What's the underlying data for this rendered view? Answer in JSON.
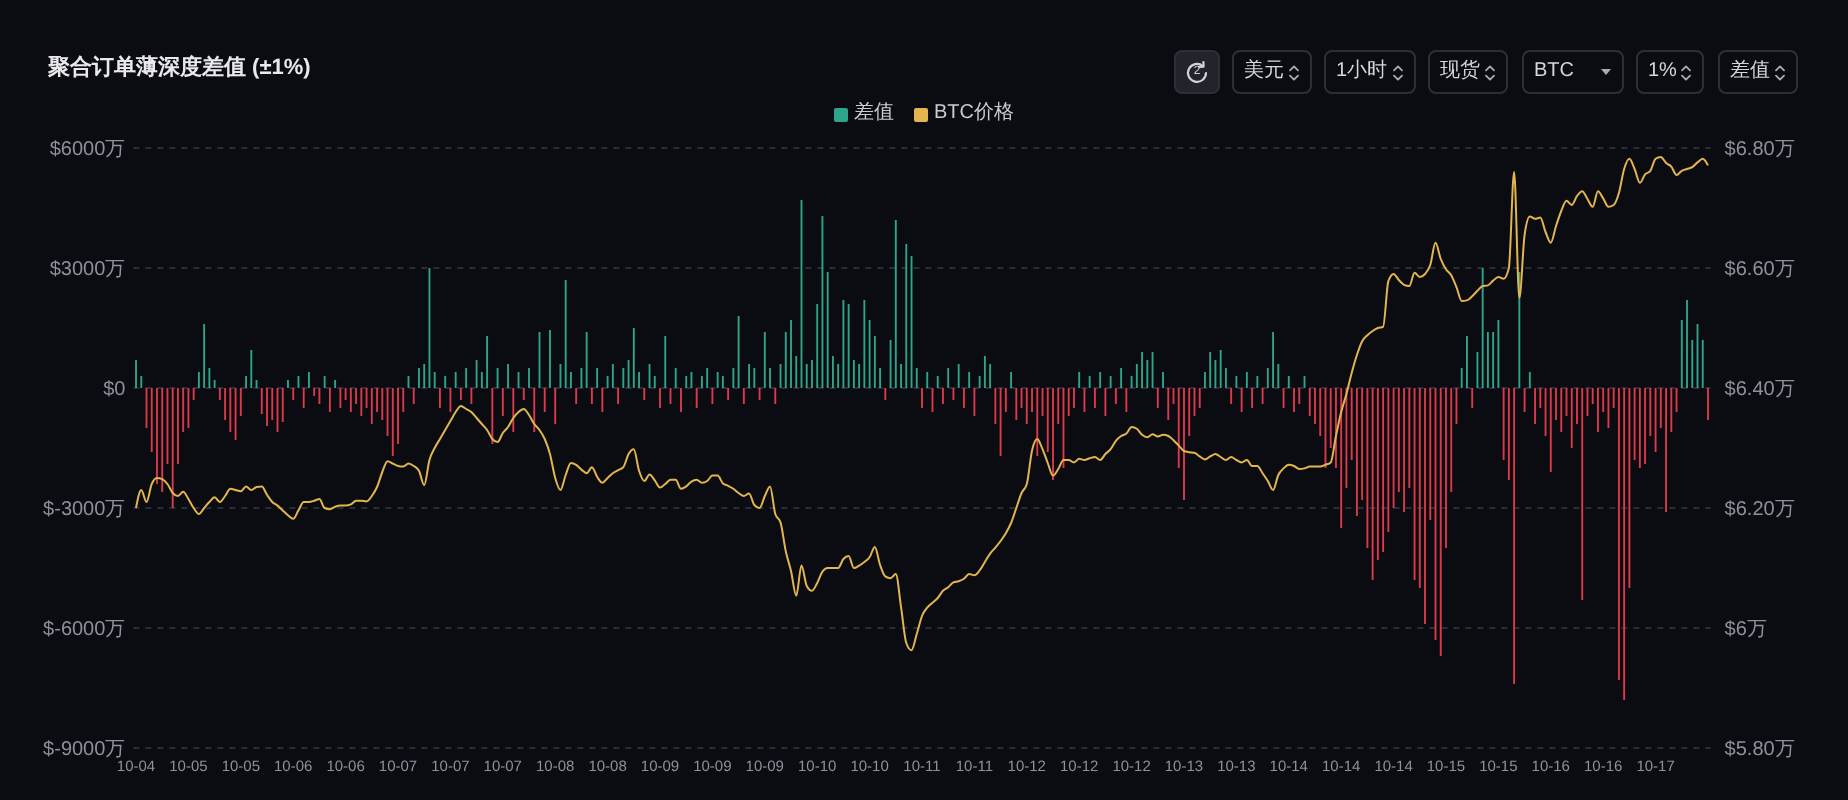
{
  "chart_data": {
    "type": "bar",
    "title": "聚合订单薄深度差值 (±1%)",
    "annotations": [
      "2",
      "美元",
      "1小时",
      "现货",
      "BTC",
      "1%",
      "差值"
    ],
    "categories": [
      "10-04",
      null,
      null,
      null,
      null,
      null,
      null,
      null,
      null,
      null,
      "10-05",
      null,
      null,
      null,
      null,
      null,
      null,
      null,
      null,
      null,
      "10-05",
      null,
      null,
      null,
      null,
      null,
      null,
      null,
      null,
      null,
      "10-06",
      null,
      null,
      null,
      null,
      null,
      null,
      null,
      null,
      null,
      "10-06",
      null,
      null,
      null,
      null,
      null,
      null,
      null,
      null,
      null,
      "10-07",
      null,
      null,
      null,
      null,
      null,
      null,
      null,
      null,
      null,
      "10-07",
      null,
      null,
      null,
      null,
      null,
      null,
      null,
      null,
      null,
      "10-07",
      null,
      null,
      null,
      null,
      null,
      null,
      null,
      null,
      null,
      "10-08",
      null,
      null,
      null,
      null,
      null,
      null,
      null,
      null,
      null,
      "10-08",
      null,
      null,
      null,
      null,
      null,
      null,
      null,
      null,
      null,
      "10-09",
      null,
      null,
      null,
      null,
      null,
      null,
      null,
      null,
      null,
      "10-09",
      null,
      null,
      null,
      null,
      null,
      null,
      null,
      null,
      null,
      "10-09",
      null,
      null,
      null,
      null,
      null,
      null,
      null,
      null,
      null,
      "10-10",
      null,
      null,
      null,
      null,
      null,
      null,
      null,
      null,
      null,
      "10-10",
      null,
      null,
      null,
      null,
      null,
      null,
      null,
      null,
      null,
      "10-11",
      null,
      null,
      null,
      null,
      null,
      null,
      null,
      null,
      null,
      "10-11",
      null,
      null,
      null,
      null,
      null,
      null,
      null,
      null,
      null,
      "10-12",
      null,
      null,
      null,
      null,
      null,
      null,
      null,
      null,
      null,
      "10-12",
      null,
      null,
      null,
      null,
      null,
      null,
      null,
      null,
      null,
      "10-12",
      null,
      null,
      null,
      null,
      null,
      null,
      null,
      null,
      null,
      "10-13",
      null,
      null,
      null,
      null,
      null,
      null,
      null,
      null,
      null,
      "10-13",
      null,
      null,
      null,
      null,
      null,
      null,
      null,
      null,
      null,
      "10-14",
      null,
      null,
      null,
      null,
      null,
      null,
      null,
      null,
      null,
      "10-14",
      null,
      null,
      null,
      null,
      null,
      null,
      null,
      null,
      null,
      "10-14",
      null,
      null,
      null,
      null,
      null,
      null,
      null,
      null,
      null,
      "10-15",
      null,
      null,
      null,
      null,
      null,
      null,
      null,
      null,
      null,
      "10-15",
      null,
      null,
      null,
      null,
      null,
      null,
      null,
      null,
      null,
      "10-16",
      null,
      null,
      null,
      null,
      null,
      null,
      null,
      null,
      null,
      "10-16",
      null,
      null,
      null,
      null,
      null,
      null,
      null,
      null,
      null,
      "10-17",
      null,
      null,
      null,
      null,
      null,
      null,
      null,
      null,
      null,
      null
    ],
    "series": [
      {
        "name": "差值",
        "color": "#2ea58a",
        "values": [
          700,
          300,
          -1000,
          -1600,
          -2400,
          -2600,
          -1900,
          -3000,
          -1900,
          -1100,
          -1000,
          -300,
          400,
          1600,
          500,
          200,
          -300,
          -800,
          -1100,
          -1300,
          -700,
          300,
          950,
          200,
          -650,
          -950,
          -800,
          -1100,
          -850,
          200,
          -300,
          300,
          -500,
          400,
          -200,
          -400,
          300,
          -600,
          200,
          -500,
          -300,
          -600,
          -400,
          -700,
          -500,
          -900,
          -600,
          -800,
          -1200,
          -1700,
          -1400,
          -600,
          300,
          -400,
          500,
          600,
          3000,
          400,
          -500,
          300,
          -600,
          400,
          -300,
          500,
          -400,
          700,
          400,
          1300,
          -1400,
          500,
          -700,
          600,
          -1100,
          400,
          -300,
          500,
          -1100,
          1400,
          -600,
          1450,
          -900,
          600,
          2700,
          400,
          -400,
          500,
          1400,
          -400,
          500,
          -600,
          300,
          600,
          -400,
          500,
          700,
          1500,
          400,
          -300,
          600,
          300,
          -500,
          1300,
          -400,
          500,
          -600,
          300,
          400,
          -500,
          300,
          500,
          -400,
          400,
          300,
          -300,
          500,
          1800,
          -400,
          600,
          500,
          -300,
          1400,
          500,
          -400,
          600,
          1400,
          1700,
          800,
          4700,
          600,
          700,
          2100,
          4300,
          2900,
          800,
          600,
          2200,
          2100,
          700,
          600,
          2200,
          1700,
          1300,
          500,
          -300,
          1200,
          4200,
          600,
          3600,
          3300,
          500,
          -500,
          400,
          -600,
          300,
          -400,
          500,
          -300,
          600,
          -500,
          400,
          -700,
          300,
          800,
          600,
          -900,
          -1700,
          -600,
          400,
          -800,
          -500,
          -900,
          -600,
          -1700,
          -700,
          -1600,
          -2300,
          -900,
          -2000,
          -700,
          -500,
          400,
          -600,
          300,
          -500,
          400,
          -700,
          300,
          -400,
          500,
          -600,
          300,
          600,
          900,
          700,
          900,
          -500,
          400,
          -800,
          -400,
          -2000,
          -2800,
          -1200,
          -700,
          -500,
          400,
          900,
          700,
          950,
          500,
          -400,
          300,
          -600,
          400,
          -500,
          300,
          -400,
          500,
          1400,
          600,
          -500,
          300,
          -600,
          -400,
          300,
          -700,
          -900,
          -1200,
          -2000,
          -1500,
          -2000,
          -3500,
          -2500,
          -1800,
          -3200,
          -2800,
          -4000,
          -4800,
          -4300,
          -4100,
          -3600,
          -3000,
          -2600,
          -3100,
          -2500,
          -4800,
          -5000,
          -5900,
          -3300,
          -6300,
          -6700,
          -4000,
          -2600,
          -900,
          500,
          1300,
          -500,
          900,
          3000,
          1400,
          1400,
          1700,
          -1800,
          -2300,
          -7400,
          2900,
          -600,
          400,
          -900,
          -500,
          -1200,
          -2100,
          -800,
          -1100,
          -700,
          -1500,
          -900,
          -5300,
          -700,
          -400,
          -1100,
          -600,
          -1000,
          -500,
          -7300,
          -7800,
          -5000,
          -1800,
          -2000,
          -1900,
          -1200,
          -1600,
          -1000,
          -3100,
          -1100,
          -600,
          1700,
          2200,
          1200,
          1600,
          1200,
          -800
        ],
        "colors": [
          "#2ea58a",
          "#2ea58a",
          "#dc3a4a",
          "#dc3a4a",
          "#dc3a4a",
          "#dc3a4a",
          "#dc3a4a",
          "#dc3a4a",
          "#dc3a4a",
          "#dc3a4a",
          "#dc3a4a",
          "#dc3a4a",
          "#2ea58a",
          "#2ea58a",
          "#2ea58a",
          "#2ea58a",
          "#dc3a4a",
          "#dc3a4a",
          "#dc3a4a",
          "#dc3a4a",
          "#dc3a4a",
          "#2ea58a",
          "#2ea58a",
          "#2ea58a",
          "#dc3a4a",
          "#dc3a4a",
          "#dc3a4a",
          "#dc3a4a",
          "#dc3a4a",
          "#2ea58a",
          "#dc3a4a",
          "#2ea58a",
          "#dc3a4a",
          "#2ea58a",
          "#dc3a4a",
          "#dc3a4a",
          "#2ea58a",
          "#dc3a4a",
          "#2ea58a",
          "#dc3a4a",
          "#dc3a4a",
          "#dc3a4a",
          "#dc3a4a",
          "#dc3a4a",
          "#dc3a4a",
          "#dc3a4a",
          "#dc3a4a",
          "#dc3a4a",
          "#dc3a4a",
          "#dc3a4a",
          "#dc3a4a",
          "#dc3a4a",
          "#2ea58a",
          "#dc3a4a",
          "#2ea58a",
          "#2ea58a",
          "#2ea58a",
          "#2ea58a",
          "#dc3a4a",
          "#2ea58a",
          "#dc3a4a",
          "#2ea58a",
          "#dc3a4a",
          "#2ea58a",
          "#dc3a4a",
          "#2ea58a",
          "#2ea58a",
          "#2ea58a",
          "#dc3a4a",
          "#2ea58a",
          "#dc3a4a",
          "#2ea58a",
          "#dc3a4a",
          "#2ea58a",
          "#dc3a4a",
          "#2ea58a",
          "#dc3a4a",
          "#2ea58a",
          "#dc3a4a",
          "#2ea58a",
          "#dc3a4a",
          "#2ea58a",
          "#2ea58a",
          "#2ea58a",
          "#dc3a4a",
          "#2ea58a",
          "#2ea58a",
          "#dc3a4a",
          "#2ea58a",
          "#dc3a4a",
          "#2ea58a",
          "#2ea58a",
          "#dc3a4a",
          "#2ea58a",
          "#2ea58a",
          "#2ea58a",
          "#2ea58a",
          "#dc3a4a",
          "#2ea58a",
          "#2ea58a",
          "#dc3a4a",
          "#2ea58a",
          "#dc3a4a",
          "#2ea58a",
          "#dc3a4a",
          "#2ea58a",
          "#2ea58a",
          "#dc3a4a",
          "#2ea58a",
          "#2ea58a",
          "#dc3a4a",
          "#2ea58a",
          "#2ea58a",
          "#dc3a4a",
          "#2ea58a",
          "#2ea58a",
          "#dc3a4a",
          "#2ea58a",
          "#2ea58a",
          "#dc3a4a",
          "#2ea58a",
          "#2ea58a",
          "#dc3a4a",
          "#2ea58a",
          "#2ea58a",
          "#2ea58a",
          "#2ea58a",
          "#2ea58a",
          "#2ea58a",
          "#2ea58a",
          "#2ea58a",
          "#2ea58a",
          "#2ea58a",
          "#2ea58a",
          "#2ea58a",
          "#2ea58a",
          "#2ea58a",
          "#2ea58a",
          "#2ea58a",
          "#2ea58a",
          "#2ea58a",
          "#2ea58a",
          "#2ea58a",
          "#dc3a4a",
          "#2ea58a",
          "#2ea58a",
          "#2ea58a",
          "#2ea58a",
          "#2ea58a",
          "#2ea58a",
          "#dc3a4a",
          "#2ea58a",
          "#dc3a4a",
          "#2ea58a",
          "#dc3a4a",
          "#2ea58a",
          "#dc3a4a",
          "#2ea58a",
          "#dc3a4a",
          "#2ea58a",
          "#dc3a4a",
          "#2ea58a",
          "#2ea58a",
          "#2ea58a",
          "#dc3a4a",
          "#dc3a4a",
          "#dc3a4a",
          "#2ea58a",
          "#dc3a4a",
          "#dc3a4a",
          "#dc3a4a",
          "#dc3a4a",
          "#dc3a4a",
          "#dc3a4a",
          "#dc3a4a",
          "#dc3a4a",
          "#dc3a4a",
          "#dc3a4a",
          "#dc3a4a",
          "#dc3a4a",
          "#2ea58a",
          "#dc3a4a",
          "#2ea58a",
          "#dc3a4a",
          "#2ea58a",
          "#dc3a4a",
          "#2ea58a",
          "#dc3a4a",
          "#2ea58a",
          "#dc3a4a",
          "#2ea58a",
          "#2ea58a",
          "#2ea58a",
          "#2ea58a",
          "#2ea58a",
          "#dc3a4a",
          "#2ea58a",
          "#dc3a4a",
          "#dc3a4a",
          "#dc3a4a",
          "#dc3a4a",
          "#dc3a4a",
          "#dc3a4a",
          "#dc3a4a",
          "#2ea58a",
          "#2ea58a",
          "#2ea58a",
          "#2ea58a",
          "#2ea58a",
          "#dc3a4a",
          "#2ea58a",
          "#dc3a4a",
          "#2ea58a",
          "#dc3a4a",
          "#2ea58a",
          "#dc3a4a",
          "#2ea58a",
          "#2ea58a",
          "#2ea58a",
          "#dc3a4a",
          "#2ea58a",
          "#dc3a4a",
          "#dc3a4a",
          "#2ea58a",
          "#dc3a4a",
          "#dc3a4a",
          "#dc3a4a",
          "#dc3a4a",
          "#dc3a4a",
          "#dc3a4a",
          "#dc3a4a",
          "#dc3a4a",
          "#dc3a4a",
          "#dc3a4a",
          "#dc3a4a",
          "#dc3a4a",
          "#dc3a4a",
          "#dc3a4a",
          "#dc3a4a",
          "#dc3a4a",
          "#dc3a4a",
          "#dc3a4a",
          "#dc3a4a",
          "#dc3a4a",
          "#dc3a4a",
          "#dc3a4a",
          "#dc3a4a",
          "#dc3a4a",
          "#dc3a4a",
          "#dc3a4a",
          "#dc3a4a",
          "#dc3a4a",
          "#dc3a4a",
          "#2ea58a",
          "#2ea58a",
          "#dc3a4a",
          "#2ea58a",
          "#2ea58a",
          "#2ea58a",
          "#2ea58a",
          "#2ea58a",
          "#dc3a4a",
          "#dc3a4a",
          "#dc3a4a",
          "#2ea58a",
          "#dc3a4a",
          "#2ea58a",
          "#dc3a4a",
          "#dc3a4a",
          "#dc3a4a",
          "#dc3a4a",
          "#dc3a4a",
          "#dc3a4a",
          "#dc3a4a",
          "#dc3a4a",
          "#dc3a4a",
          "#dc3a4a",
          "#dc3a4a",
          "#dc3a4a",
          "#dc3a4a",
          "#dc3a4a",
          "#dc3a4a",
          "#dc3a4a",
          "#dc3a4a",
          "#dc3a4a",
          "#dc3a4a",
          "#dc3a4a",
          "#dc3a4a",
          "#dc3a4a",
          "#dc3a4a",
          "#dc3a4a",
          "#dc3a4a",
          "#dc3a4a",
          "#dc3a4a",
          "#dc3a4a",
          "#2ea58a",
          "#2ea58a",
          "#2ea58a",
          "#2ea58a",
          "#2ea58a",
          "#dc3a4a"
        ]
      },
      {
        "name": "BTC价格",
        "type": "line",
        "axis": "y2",
        "color": "#e3b54f",
        "values": [
          6.2,
          6.23,
          6.21,
          6.24,
          6.25,
          6.248,
          6.24,
          6.225,
          6.22,
          6.227,
          6.215,
          6.2,
          6.19,
          6.2,
          6.21,
          6.218,
          6.21,
          6.22,
          6.232,
          6.23,
          6.228,
          6.236,
          6.23,
          6.235,
          6.236,
          6.222,
          6.21,
          6.204,
          6.196,
          6.188,
          6.182,
          6.196,
          6.21,
          6.21,
          6.212,
          6.215,
          6.2,
          6.198,
          6.202,
          6.204,
          6.204,
          6.206,
          6.212,
          6.212,
          6.211,
          6.22,
          6.235,
          6.26,
          6.278,
          6.274,
          6.27,
          6.269,
          6.274,
          6.27,
          6.262,
          6.238,
          6.28,
          6.3,
          6.315,
          6.33,
          6.345,
          6.36,
          6.37,
          6.365,
          6.36,
          6.35,
          6.34,
          6.33,
          6.315,
          6.31,
          6.325,
          6.335,
          6.35,
          6.36,
          6.365,
          6.355,
          6.34,
          6.33,
          6.315,
          6.29,
          6.25,
          6.23,
          6.255,
          6.275,
          6.272,
          6.264,
          6.258,
          6.268,
          6.252,
          6.242,
          6.25,
          6.258,
          6.263,
          6.268,
          6.29,
          6.298,
          6.262,
          6.245,
          6.256,
          6.246,
          6.234,
          6.24,
          6.247,
          6.247,
          6.232,
          6.236,
          6.244,
          6.247,
          6.242,
          6.245,
          6.254,
          6.254,
          6.241,
          6.237,
          6.232,
          6.225,
          6.22,
          6.224,
          6.205,
          6.2,
          6.22,
          6.236,
          6.19,
          6.176,
          6.128,
          6.095,
          6.054,
          6.104,
          6.07,
          6.062,
          6.075,
          6.094,
          6.1,
          6.1,
          6.1,
          6.115,
          6.12,
          6.1,
          6.104,
          6.11,
          6.118,
          6.135,
          6.105,
          6.086,
          6.083,
          6.09,
          6.035,
          5.975,
          5.963,
          5.99,
          6.02,
          6.034,
          6.042,
          6.05,
          6.062,
          6.068,
          6.076,
          6.078,
          6.082,
          6.09,
          6.088,
          6.096,
          6.11,
          6.124,
          6.134,
          6.145,
          6.158,
          6.175,
          6.2,
          6.225,
          6.24,
          6.296,
          6.315,
          6.298,
          6.275,
          6.254,
          6.265,
          6.28,
          6.28,
          6.276,
          6.282,
          6.28,
          6.283,
          6.285,
          6.28,
          6.29,
          6.298,
          6.312,
          6.32,
          6.324,
          6.335,
          6.332,
          6.322,
          6.318,
          6.323,
          6.319,
          6.322,
          6.32,
          6.313,
          6.304,
          6.295,
          6.293,
          6.292,
          6.286,
          6.281,
          6.286,
          6.29,
          6.285,
          6.28,
          6.285,
          6.28,
          6.276,
          6.28,
          6.27,
          6.27,
          6.258,
          6.245,
          6.23,
          6.255,
          6.266,
          6.272,
          6.27,
          6.265,
          6.266,
          6.269,
          6.269,
          6.269,
          6.272,
          6.276,
          6.32,
          6.36,
          6.39,
          6.425,
          6.455,
          6.478,
          6.488,
          6.495,
          6.5,
          6.502,
          6.578,
          6.59,
          6.58,
          6.572,
          6.57,
          6.592,
          6.585,
          6.59,
          6.605,
          6.642,
          6.615,
          6.598,
          6.588,
          6.568,
          6.545,
          6.546,
          6.553,
          6.562,
          6.57,
          6.571,
          6.579,
          6.585,
          6.582,
          6.6,
          6.76,
          6.55,
          6.655,
          6.686,
          6.682,
          6.684,
          6.66,
          6.642,
          6.67,
          6.695,
          6.712,
          6.705,
          6.72,
          6.728,
          6.715,
          6.702,
          6.728,
          6.716,
          6.702,
          6.705,
          6.725,
          6.765,
          6.782,
          6.765,
          6.742,
          6.756,
          6.762,
          6.782,
          6.785,
          6.775,
          6.769,
          6.755,
          6.762,
          6.765,
          6.768,
          6.776,
          6.782,
          6.771
        ]
      }
    ],
    "ylim": [
      -9000,
      6000
    ],
    "yticks": [
      {
        "value": -9000,
        "label": "$-9000万"
      },
      {
        "value": -6000,
        "label": "$-6000万"
      },
      {
        "value": -3000,
        "label": "$-3000万"
      },
      {
        "value": 0,
        "label": "$0"
      },
      {
        "value": 3000,
        "label": "$3000万"
      },
      {
        "value": 6000,
        "label": "$6000万"
      }
    ],
    "y2lim": [
      5.8,
      6.8
    ],
    "y2ticks": [
      {
        "value": 5.8,
        "label": "$5.80万"
      },
      {
        "value": 6,
        "label": "$6万"
      },
      {
        "value": 6.2,
        "label": "$6.20万"
      },
      {
        "value": 6.4,
        "label": "$6.40万"
      },
      {
        "value": 6.6,
        "label": "$6.60万"
      },
      {
        "value": 6.8,
        "label": "$6.80万"
      }
    ],
    "grid": "y",
    "legend": "top",
    "marker": "none"
  }
}
